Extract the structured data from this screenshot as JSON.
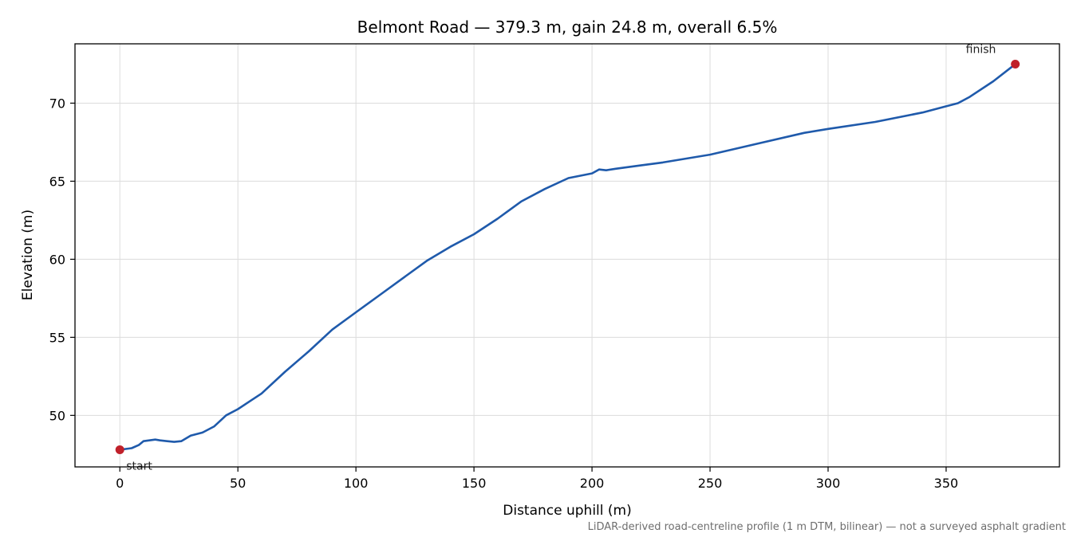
{
  "chart_data": {
    "type": "line",
    "title": "Belmont Road — 379.3 m, gain 24.8 m, overall 6.5%",
    "xlabel": "Distance uphill (m)",
    "ylabel": "Elevation (m)",
    "xlim": [
      -19,
      398
    ],
    "ylim": [
      46.7,
      73.8
    ],
    "xticks": [
      0,
      50,
      100,
      150,
      200,
      250,
      300,
      350
    ],
    "yticks": [
      50,
      55,
      60,
      65,
      70
    ],
    "grid": true,
    "line_color": "#1f5aab",
    "marker_color": "#c0202a",
    "series": [
      {
        "x": [
          0,
          5,
          8,
          10,
          15,
          17,
          20,
          23,
          26,
          30,
          35,
          40,
          45,
          50,
          55,
          60,
          70,
          80,
          90,
          100,
          110,
          120,
          130,
          140,
          150,
          160,
          170,
          180,
          190,
          200,
          203,
          206,
          210,
          220,
          230,
          250,
          270,
          290,
          300,
          320,
          340,
          350,
          355,
          360,
          370,
          379.3
        ],
        "y": [
          47.8,
          47.9,
          48.1,
          48.35,
          48.45,
          48.4,
          48.35,
          48.3,
          48.35,
          48.7,
          48.9,
          49.3,
          50.0,
          50.4,
          50.9,
          51.4,
          52.8,
          54.1,
          55.5,
          56.6,
          57.7,
          58.8,
          59.9,
          60.8,
          61.6,
          62.6,
          63.7,
          64.5,
          65.2,
          65.5,
          65.75,
          65.7,
          65.8,
          66.0,
          66.2,
          66.7,
          67.4,
          68.1,
          68.35,
          68.8,
          69.4,
          69.8,
          70.0,
          70.4,
          71.4,
          72.5
        ]
      }
    ],
    "annotations": [
      {
        "text": "start",
        "x": 0,
        "y": 47.8
      },
      {
        "text": "finish",
        "x": 379.3,
        "y": 72.5
      }
    ],
    "footnote": "LiDAR-derived road-centreline profile (1 m DTM, bilinear) — not a surveyed asphalt gradient"
  }
}
